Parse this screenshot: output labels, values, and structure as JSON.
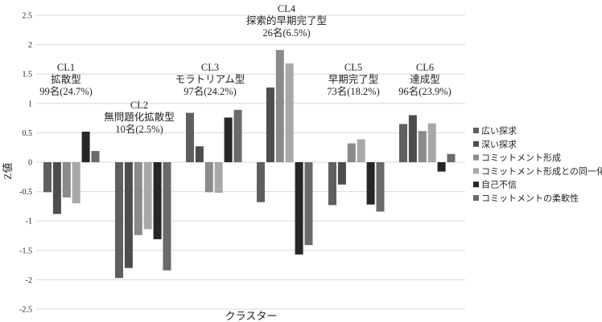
{
  "chart_data": {
    "type": "bar",
    "categories": [
      "CL1",
      "CL2",
      "CL3",
      "CL4",
      "CL5",
      "CL6"
    ],
    "cluster_labels": [
      {
        "id": "CL1",
        "name": "拡散型",
        "count": "99名(24.7%)"
      },
      {
        "id": "CL2",
        "name": "無問題化拡散型",
        "count": "10名(2.5%)"
      },
      {
        "id": "CL3",
        "name": "モラトリアム型",
        "count": "97名(24.2%)"
      },
      {
        "id": "CL4",
        "name": "探索的早期完了型",
        "count": "26名(6.5%)"
      },
      {
        "id": "CL5",
        "name": "早期完了型",
        "count": "73名(18.2%)"
      },
      {
        "id": "CL6",
        "name": "達成型",
        "count": "96名(23.9%)"
      }
    ],
    "series": [
      {
        "name": "広い探求",
        "color": "#5f5f5f",
        "values": [
          -0.51,
          -1.97,
          0.84,
          -0.68,
          -0.73,
          0.65
        ]
      },
      {
        "name": "深い探求",
        "color": "#4d4d4d",
        "values": [
          -0.88,
          -1.8,
          0.27,
          1.27,
          -0.38,
          0.8
        ]
      },
      {
        "name": "コミットメント形成",
        "color": "#8a8a8a",
        "values": [
          -0.6,
          -1.24,
          -0.51,
          1.91,
          0.32,
          0.53
        ]
      },
      {
        "name": "コミットメント形成との同一化",
        "color": "#a8a8a8",
        "values": [
          -0.7,
          -1.14,
          -0.52,
          1.68,
          0.39,
          0.66
        ]
      },
      {
        "name": "自己不信",
        "color": "#262626",
        "values": [
          0.52,
          -1.31,
          0.76,
          -1.57,
          -0.72,
          -0.16
        ]
      },
      {
        "name": "コミットメントの柔軟性",
        "color": "#6a6a6a",
        "values": [
          0.19,
          -1.84,
          0.89,
          -1.41,
          -0.84,
          0.14
        ]
      }
    ],
    "xlabel": "クラスター",
    "ylabel": "Z値",
    "ylim": [
      -2.5,
      2.5
    ],
    "yticks": [
      "2.5",
      "2",
      "1.5",
      "1",
      "0.5",
      "0",
      "-0.5",
      "-1",
      "-1.5",
      "-2",
      "-2.5"
    ],
    "ytick_values": [
      2.5,
      2,
      1.5,
      1,
      0.5,
      0,
      -0.5,
      -1,
      -1.5,
      -2,
      -2.5
    ],
    "grid": true,
    "legend_position": "right"
  }
}
